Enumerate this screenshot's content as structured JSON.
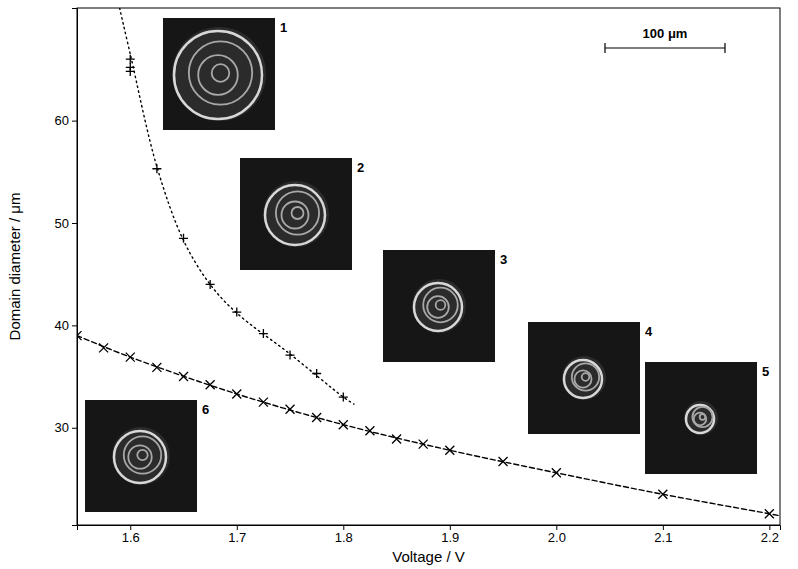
{
  "chart_data": {
    "type": "scatter",
    "x_label": "Voltage / V",
    "y_label": "Domain diameter / μm",
    "xlim": [
      1.55,
      2.21
    ],
    "ylim": [
      20.5,
      71
    ],
    "xticks": [
      1.6,
      1.7,
      1.8,
      1.9,
      {
        "value": 2,
        "label": "2.0"
      },
      2.1,
      2.2
    ],
    "yticks": [
      30,
      40,
      50,
      60
    ],
    "grid": false,
    "annotations": [
      "1",
      "2",
      "3",
      "4",
      "5",
      "6",
      "100 μm"
    ],
    "series": [
      {
        "type": "scatter",
        "marker": "plus",
        "color": "#000000",
        "x": [
          1.6,
          1.6,
          1.6,
          1.625,
          1.65,
          1.675,
          1.7,
          1.725,
          1.75,
          1.775,
          1.8
        ],
        "values": [
          66,
          65.2,
          64.8,
          55.3,
          48.5,
          44,
          41.3,
          39.2,
          37.1,
          35.3,
          33
        ]
      },
      {
        "type": "scatter",
        "marker": "cross",
        "color": "#000000",
        "x": [
          1.55,
          1.575,
          1.6,
          1.625,
          1.65,
          1.675,
          1.7,
          1.725,
          1.75,
          1.775,
          1.8,
          1.825,
          1.85,
          1.875,
          1.9,
          1.95,
          2.0,
          2.1,
          2.2
        ],
        "values": [
          39,
          37.8,
          36.9,
          35.9,
          35,
          34.2,
          33.3,
          32.5,
          31.8,
          31,
          30.3,
          29.7,
          28.9,
          28.4,
          27.8,
          26.7,
          25.6,
          23.5,
          21.6
        ]
      },
      {
        "type": "line",
        "line_style": "dotted",
        "color": "#000000",
        "x": [
          1.59,
          1.6,
          1.625,
          1.65,
          1.675,
          1.7,
          1.75,
          1.8,
          1.81
        ],
        "values": [
          71,
          66.5,
          55.5,
          48.3,
          44,
          41.2,
          37.2,
          33,
          32.3
        ]
      },
      {
        "type": "line",
        "line_style": "dashed",
        "color": "#000000",
        "x": [
          1.55,
          1.6,
          1.7,
          1.8,
          1.9,
          2.0,
          2.1,
          2.2,
          2.21
        ],
        "values": [
          39,
          36.9,
          33.3,
          30.3,
          27.8,
          25.6,
          23.5,
          21.6,
          21.4
        ]
      }
    ]
  }
}
